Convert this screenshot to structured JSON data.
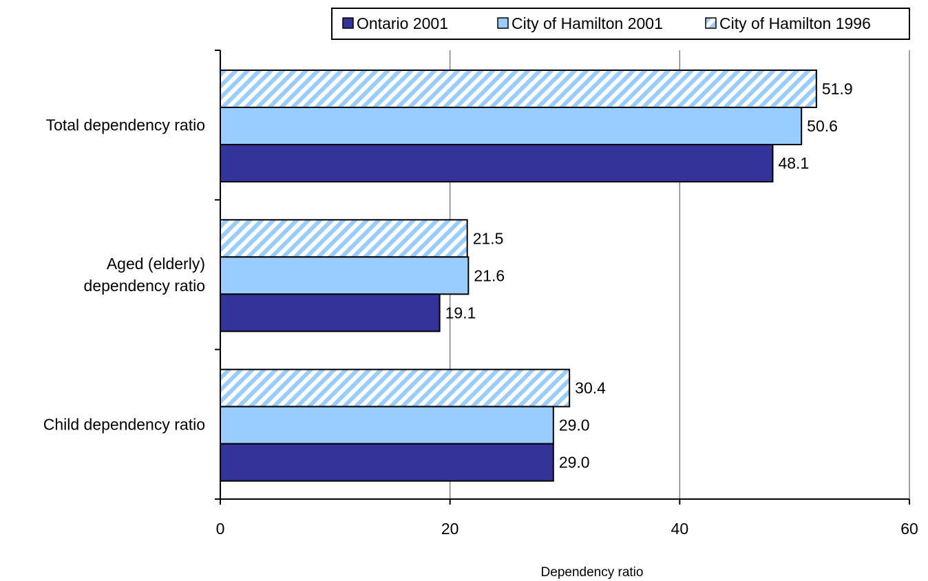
{
  "chart_data": {
    "type": "bar",
    "orientation": "horizontal",
    "categories": [
      "Total dependency ratio",
      "Aged (elderly) dependency ratio",
      "Child dependency ratio"
    ],
    "category_lines": [
      [
        "Total dependency ratio"
      ],
      [
        "Aged (elderly)",
        "dependency ratio"
      ],
      [
        "Child dependency ratio"
      ]
    ],
    "series": [
      {
        "name": "Ontario 2001",
        "values": [
          48.1,
          19.1,
          29.0
        ],
        "labels": [
          "48.1",
          "19.1",
          "29.0"
        ],
        "color": "#333399",
        "pattern": "solid"
      },
      {
        "name": "City of Hamilton 2001",
        "values": [
          50.6,
          21.6,
          29.0
        ],
        "labels": [
          "50.6",
          "21.6",
          "29.0"
        ],
        "color": "#99CCFF",
        "pattern": "solid"
      },
      {
        "name": "City of Hamilton 1996",
        "values": [
          51.9,
          21.5,
          30.4
        ],
        "labels": [
          "51.9",
          "21.5",
          "30.4"
        ],
        "color": "#99CCFF",
        "pattern": "diagonal-stripes"
      }
    ],
    "xlabel": "Dependency ratio",
    "xlim": [
      0,
      60
    ],
    "xticks": [
      0,
      20,
      40,
      60
    ],
    "xtick_labels": [
      "0",
      "20",
      "40",
      "60"
    ],
    "grid": "vertical",
    "legend_position": "top-right"
  }
}
